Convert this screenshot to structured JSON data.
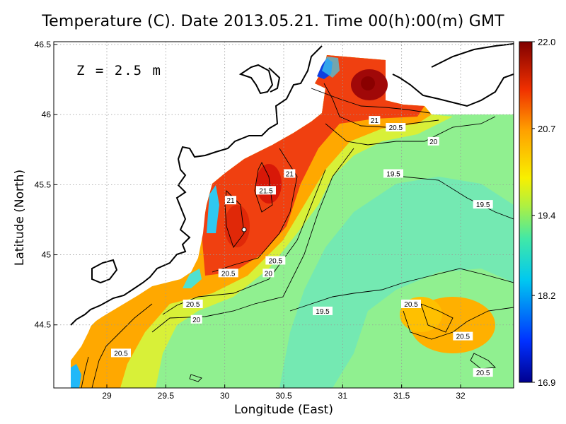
{
  "title": "Temperature (C). Date 2013.05.21. Time 00(h):00(m) GMT",
  "depth_label": "Z = 2.5 m",
  "chart_data": {
    "type": "heatmap",
    "title": "Temperature (C). Date 2013.05.21. Time 00(h):00(m) GMT",
    "xlabel": "Longitude (East)",
    "ylabel": "Latitude (North)",
    "xlim": [
      28.55,
      32.45
    ],
    "ylim": [
      44.05,
      46.52
    ],
    "x_ticks": [
      "29",
      "29.5",
      "30",
      "30.5",
      "31",
      "31.5",
      "32"
    ],
    "x_tick_values": [
      29,
      29.5,
      30,
      30.5,
      31,
      31.5,
      32
    ],
    "y_ticks": [
      "44.5",
      "45",
      "45.5",
      "46",
      "46.5"
    ],
    "y_tick_values": [
      44.5,
      45,
      45.5,
      46,
      46.5
    ],
    "grid": true,
    "colorbar": {
      "min": 16.9,
      "max": 22.0,
      "tick_labels": [
        "22.0",
        "20.7",
        "19.4",
        "18.2",
        "16.9"
      ],
      "tick_values": [
        22.0,
        20.7,
        19.4,
        18.2,
        16.9
      ],
      "placement": "right"
    },
    "contour_labels": [
      {
        "text": "21",
        "lon": 31.27,
        "lat": 45.96
      },
      {
        "text": "20.5",
        "lon": 31.45,
        "lat": 45.91
      },
      {
        "text": "20",
        "lon": 31.77,
        "lat": 45.81
      },
      {
        "text": "21",
        "lon": 30.55,
        "lat": 45.58
      },
      {
        "text": "21.5",
        "lon": 30.35,
        "lat": 45.46
      },
      {
        "text": "19.5",
        "lon": 31.43,
        "lat": 45.58
      },
      {
        "text": "19.5",
        "lon": 32.19,
        "lat": 45.36
      },
      {
        "text": "21",
        "lon": 30.05,
        "lat": 45.39
      },
      {
        "text": "20.5",
        "lon": 30.43,
        "lat": 44.96
      },
      {
        "text": "20.5",
        "lon": 30.03,
        "lat": 44.87
      },
      {
        "text": "20",
        "lon": 30.37,
        "lat": 44.87
      },
      {
        "text": "20.5",
        "lon": 29.73,
        "lat": 44.65
      },
      {
        "text": "20",
        "lon": 29.76,
        "lat": 44.54
      },
      {
        "text": "19.5",
        "lon": 30.83,
        "lat": 44.6
      },
      {
        "text": "20.5",
        "lon": 31.58,
        "lat": 44.65
      },
      {
        "text": "20.5",
        "lon": 32.02,
        "lat": 44.42
      },
      {
        "text": "20.5",
        "lon": 32.19,
        "lat": 44.16
      },
      {
        "text": "20.5",
        "lon": 29.12,
        "lat": 44.3
      }
    ],
    "warm_core_max": {
      "lon": 31.22,
      "lat": 46.26,
      "value": 22.0
    },
    "cold_spot_min": {
      "lon": 30.82,
      "lat": 46.35,
      "value": 16.9
    }
  }
}
